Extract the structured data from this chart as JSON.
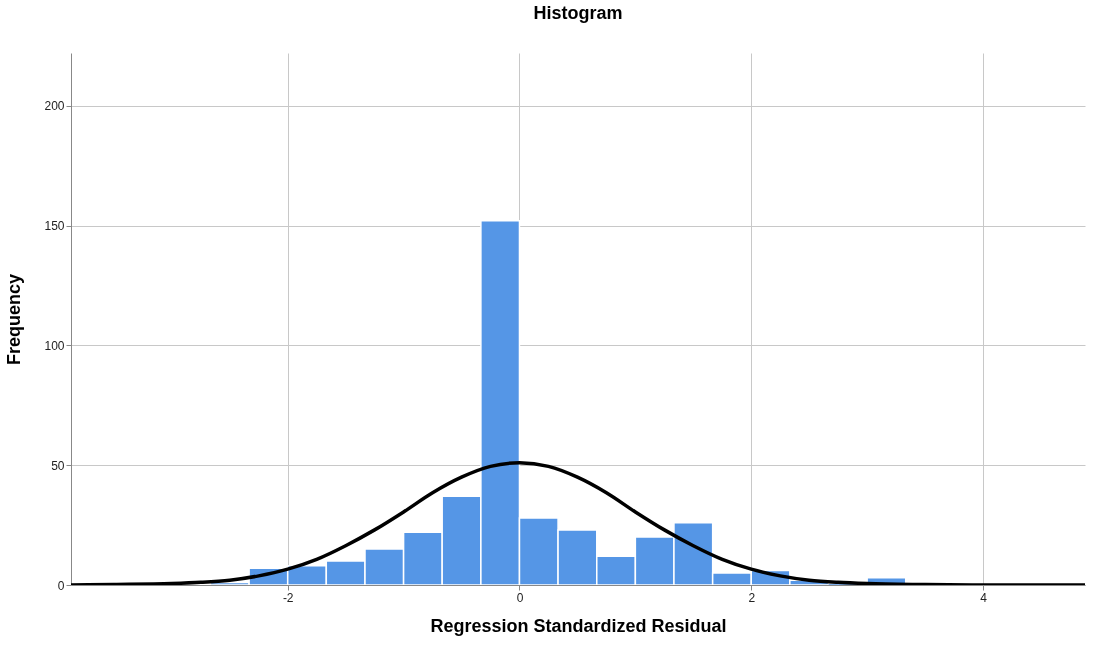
{
  "chart_data": {
    "type": "histogram",
    "title": "Histogram",
    "xlabel": "Regression Standardized Residual",
    "ylabel": "Frequency",
    "bins": [
      -2.667,
      -2.333,
      -2,
      -1.667,
      -1.333,
      -1,
      -0.667,
      -0.333,
      0,
      0.333,
      0.667,
      1,
      1.333,
      1.667,
      2,
      2.333,
      2.667,
      3,
      3.333
    ],
    "values": [
      1,
      7,
      8,
      10,
      15,
      22,
      37,
      152,
      28,
      23,
      12,
      20,
      26,
      5,
      6,
      2,
      0,
      3
    ],
    "color": "#5596e6",
    "series": [
      {
        "type": "line",
        "color": "#000000",
        "x": [
          -3.87,
          -3.5,
          -3,
          -2.75,
          -2.5,
          -2.25,
          -2,
          -1.75,
          -1.5,
          -1.25,
          -1,
          -0.75,
          -0.5,
          -0.25,
          0,
          0.25,
          0.5,
          0.75,
          1,
          1.25,
          1.5,
          1.75,
          2,
          2.25,
          2.5,
          2.75,
          3,
          3.5,
          4,
          4.88
        ],
        "values": [
          0,
          0.2,
          0.6,
          1.1,
          2,
          3.8,
          6.6,
          10.7,
          16.4,
          23,
          30.5,
          38.5,
          45,
          49.5,
          51,
          49.5,
          45,
          38.5,
          30.5,
          23,
          16.4,
          10.7,
          6.6,
          3.8,
          2,
          1.1,
          0.6,
          0.2,
          0,
          0
        ]
      }
    ],
    "xlim": [
      -3.87,
      4.88
    ],
    "ylim": [
      0,
      222
    ],
    "xticks": [
      -2,
      0,
      2,
      4
    ],
    "yticks": [
      0,
      50,
      100,
      150,
      200
    ],
    "grid": true,
    "line_style": "solid",
    "marker": "none"
  }
}
